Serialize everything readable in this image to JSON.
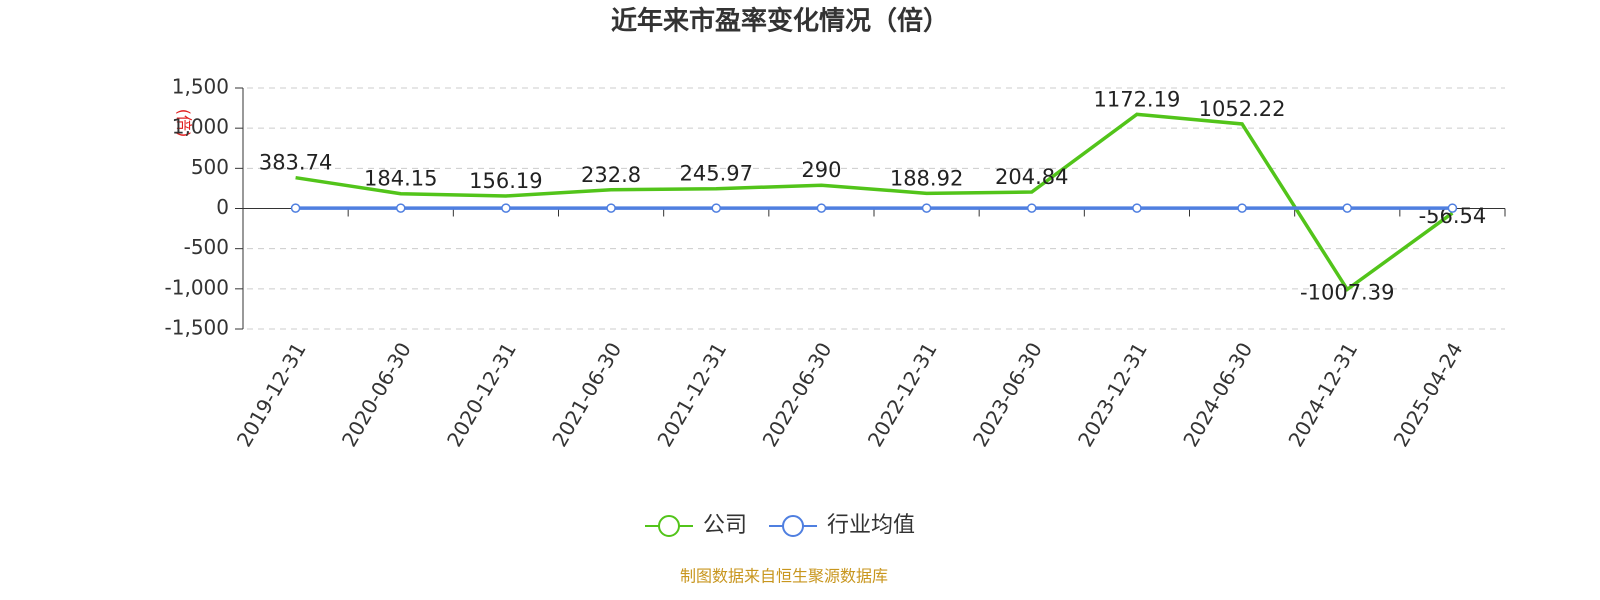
{
  "chart_data": {
    "type": "line",
    "title": "近年来市盈率变化情况（倍）",
    "y_label": "(倍)",
    "categories": [
      "2019-12-31",
      "2020-06-30",
      "2020-12-31",
      "2021-06-30",
      "2021-12-31",
      "2022-06-30",
      "2022-12-31",
      "2023-06-30",
      "2023-12-31",
      "2024-06-30",
      "2024-12-31",
      "2025-04-24"
    ],
    "series": [
      {
        "name": "公司",
        "color": "#52c41a",
        "values": [
          383.74,
          184.15,
          156.19,
          232.8,
          245.97,
          290,
          188.92,
          204.84,
          1172.19,
          1052.22,
          -1007.39,
          -56.54
        ]
      },
      {
        "name": "行业均值",
        "color": "#4f7fe0",
        "values": [
          5,
          5,
          5,
          5,
          5,
          5,
          5,
          5,
          5,
          5,
          5,
          5
        ]
      }
    ],
    "ylim": [
      -1500,
      1500
    ],
    "yticks": [
      {
        "value": -1500,
        "label": "-1,500"
      },
      {
        "value": -1000,
        "label": "-1,000"
      },
      -500,
      0,
      500,
      {
        "value": 1000,
        "label": "1,000"
      },
      {
        "value": 1500,
        "label": "1,500"
      }
    ],
    "grid": true,
    "legend": "bottom",
    "source": "制图数据来自恒生聚源数据库"
  }
}
